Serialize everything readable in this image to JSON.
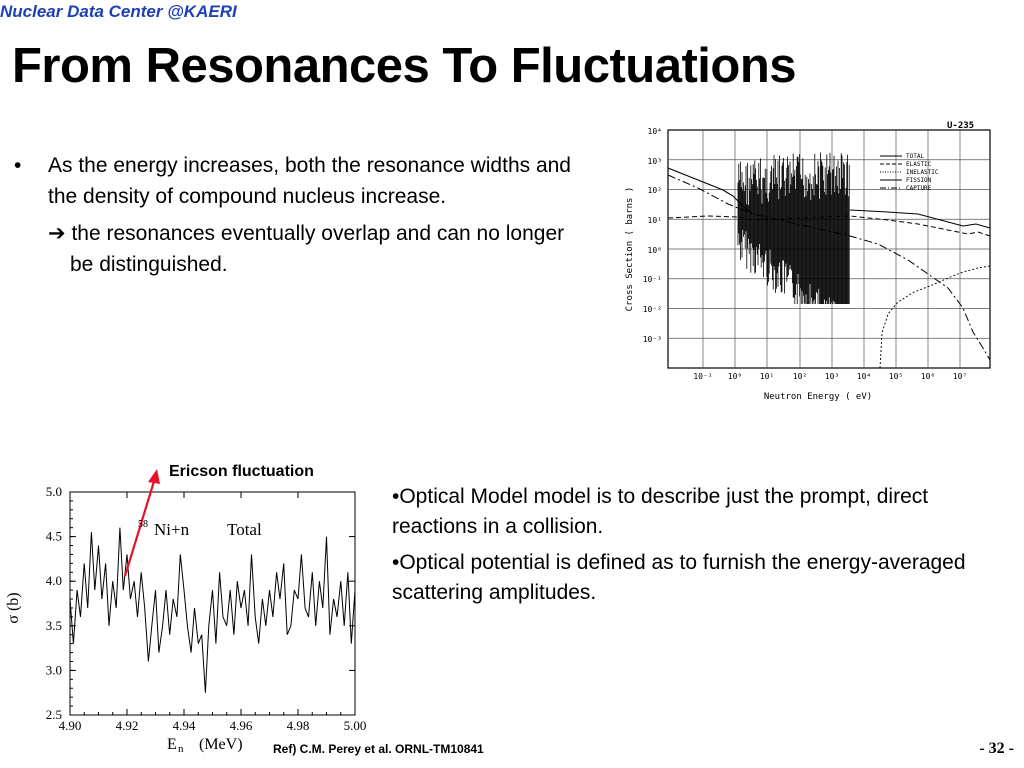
{
  "header": "Nuclear Data Center @KAERI",
  "title": "From Resonances To Fluctuations",
  "bullets": {
    "dot": "•",
    "item1": "As the energy increases, both the resonance widths and the density of compound nucleus increase.",
    "arrow": "➔",
    "item2": "the resonances eventually overlap and can no longer be distinguished."
  },
  "optical": {
    "p1": "•Optical Model model is to describe just the prompt, direct reactions in a collision.",
    "p2": "•Optical potential is defined as to furnish the energy-averaged scattering amplitudes."
  },
  "reference": "Ref) C.M. Perey et al. ORNL-TM10841",
  "page_number": "- 32 -",
  "u235_chart": {
    "type": "line",
    "label": "U-235",
    "ylabel": "Cross Section ( barns )",
    "xlabel": "Neutron Energy ( eV)",
    "x_ticks": [
      "10⁻¹",
      "10⁰",
      "10¹",
      "10²",
      "10³",
      "10⁴",
      "10⁵",
      "10⁶",
      "10⁷"
    ],
    "y_ticks": [
      "10⁴",
      "10³",
      "10²",
      "10¹",
      "10⁰",
      "10⁻¹",
      "10⁻²",
      "10⁻³"
    ],
    "legend": [
      "TOTAL",
      "ELASTIC",
      "INELASTIC",
      "FISSION",
      "CAPTURE"
    ]
  },
  "chart_data": {
    "type": "line",
    "annotation": "Ericson fluctuation",
    "inner_label": "Ni+n",
    "inner_label_sup": "58",
    "inner_label_right": "Total",
    "xlabel_main": "E",
    "xlabel_sub": "n",
    "xlabel_unit": "(MeV)",
    "ylabel": "σ (b)",
    "xlim": [
      4.9,
      5.0
    ],
    "ylim": [
      2.5,
      5.0
    ],
    "x_ticks": [
      "4.90",
      "4.92",
      "4.94",
      "4.96",
      "4.98",
      "5.00"
    ],
    "y_ticks": [
      "5.0",
      "4.5",
      "4.0",
      "3.5",
      "3.0",
      "2.5"
    ],
    "x": [
      4.9,
      4.9012,
      4.9025,
      4.9037,
      4.905,
      4.9062,
      4.9075,
      4.9087,
      4.91,
      4.9112,
      4.9125,
      4.9137,
      4.915,
      4.9162,
      4.9175,
      4.9187,
      4.92,
      4.9212,
      4.9225,
      4.9237,
      4.925,
      4.9262,
      4.9275,
      4.9287,
      4.93,
      4.9312,
      4.9325,
      4.9337,
      4.935,
      4.9362,
      4.9375,
      4.9387,
      4.94,
      4.9412,
      4.9425,
      4.9437,
      4.945,
      4.9462,
      4.9475,
      4.9487,
      4.95,
      4.9512,
      4.9525,
      4.9537,
      4.955,
      4.9562,
      4.9575,
      4.9587,
      4.96,
      4.9612,
      4.9625,
      4.9637,
      4.965,
      4.9662,
      4.9675,
      4.9687,
      4.97,
      4.9712,
      4.9725,
      4.9737,
      4.975,
      4.9762,
      4.9775,
      4.9787,
      4.98,
      4.9812,
      4.9825,
      4.9837,
      4.985,
      4.9862,
      4.9875,
      4.9887,
      4.99,
      4.9912,
      4.9925,
      4.9937,
      4.995,
      4.9962,
      4.9975,
      4.9987,
      5.0
    ],
    "y": [
      3.8,
      3.3,
      3.9,
      3.6,
      4.2,
      3.7,
      4.55,
      3.9,
      4.4,
      3.8,
      4.2,
      3.5,
      4.0,
      3.7,
      4.6,
      3.9,
      4.3,
      3.8,
      4.0,
      3.6,
      4.1,
      3.7,
      3.1,
      3.5,
      3.9,
      3.2,
      3.5,
      3.9,
      3.4,
      3.8,
      3.6,
      4.3,
      3.9,
      3.5,
      3.2,
      3.7,
      3.3,
      3.4,
      2.75,
      3.5,
      3.9,
      3.3,
      4.1,
      3.6,
      3.5,
      3.9,
      3.4,
      4.0,
      3.7,
      3.9,
      3.5,
      4.3,
      3.6,
      3.3,
      3.8,
      3.5,
      3.9,
      3.6,
      4.1,
      3.8,
      4.2,
      3.4,
      3.5,
      3.9,
      3.8,
      4.3,
      3.7,
      3.6,
      4.1,
      3.5,
      4.0,
      3.7,
      4.5,
      3.4,
      3.8,
      3.6,
      4.0,
      3.5,
      4.1,
      3.3,
      3.9
    ]
  }
}
